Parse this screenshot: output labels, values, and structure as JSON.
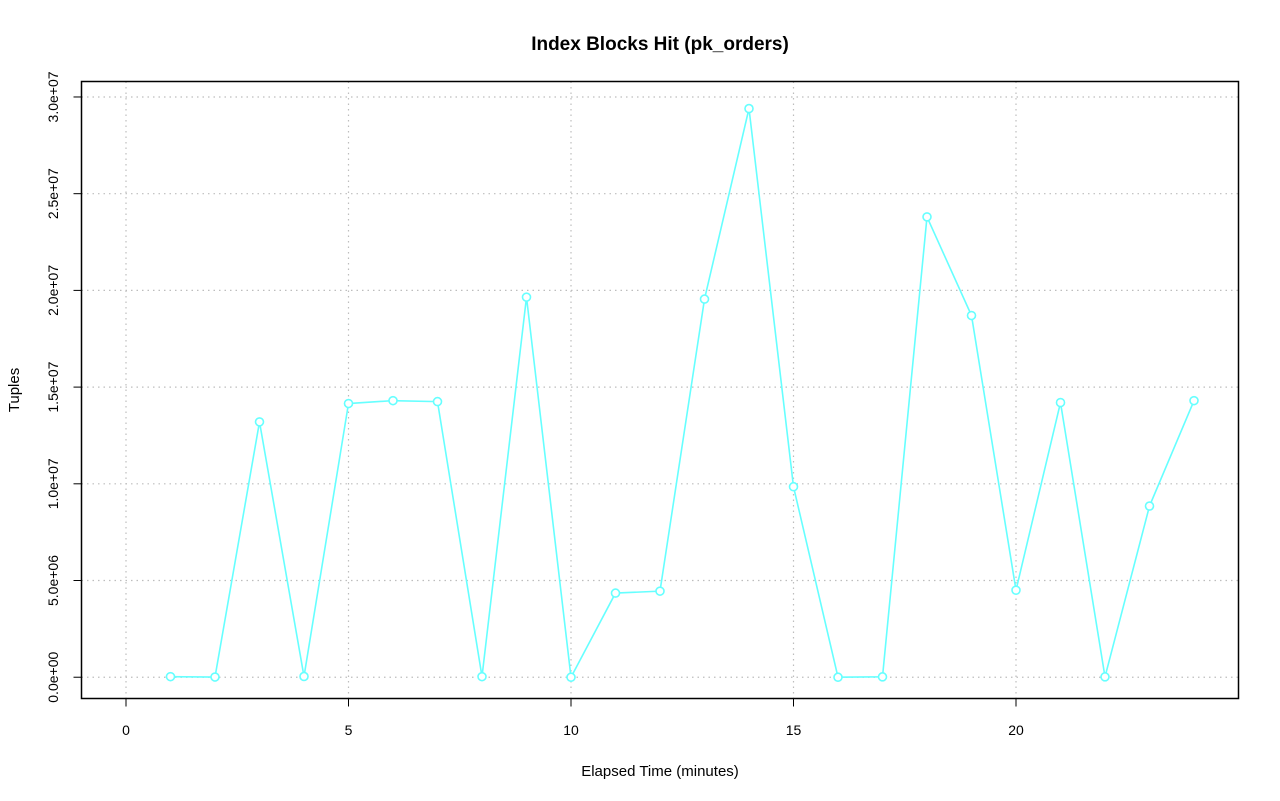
{
  "chart_data": {
    "type": "line",
    "title": "Index Blocks Hit (pk_orders)",
    "xlabel": "Elapsed Time (minutes)",
    "ylabel": "Tuples",
    "xlim": [
      -1,
      25
    ],
    "ylim": [
      -1100000,
      30800000
    ],
    "x_ticks": [
      0,
      5,
      10,
      15,
      20
    ],
    "x_tick_labels": [
      "0",
      "5",
      "10",
      "15",
      "20"
    ],
    "y_ticks": [
      0,
      5000000,
      10000000,
      15000000,
      20000000,
      25000000,
      30000000
    ],
    "y_tick_labels": [
      "0.0e+00",
      "5.0e+06",
      "1.0e+07",
      "1.5e+07",
      "2.0e+07",
      "2.5e+07",
      "3.0e+07"
    ],
    "grid": true,
    "line_color": "#66ffff",
    "series": [
      {
        "x": [
          1,
          2,
          3,
          4,
          5,
          6,
          7,
          8,
          9,
          10,
          11,
          12,
          13,
          14,
          15,
          16,
          17,
          18,
          19,
          20,
          21,
          22,
          23,
          24
        ],
        "values": [
          30000,
          10000,
          13200000,
          40000,
          14150000,
          14300000,
          14250000,
          30000,
          19650000,
          0,
          4350000,
          4450000,
          19550000,
          29400000,
          9850000,
          0,
          20000,
          23800000,
          18700000,
          4500000,
          14200000,
          20000,
          8850000,
          14300000
        ]
      }
    ]
  }
}
